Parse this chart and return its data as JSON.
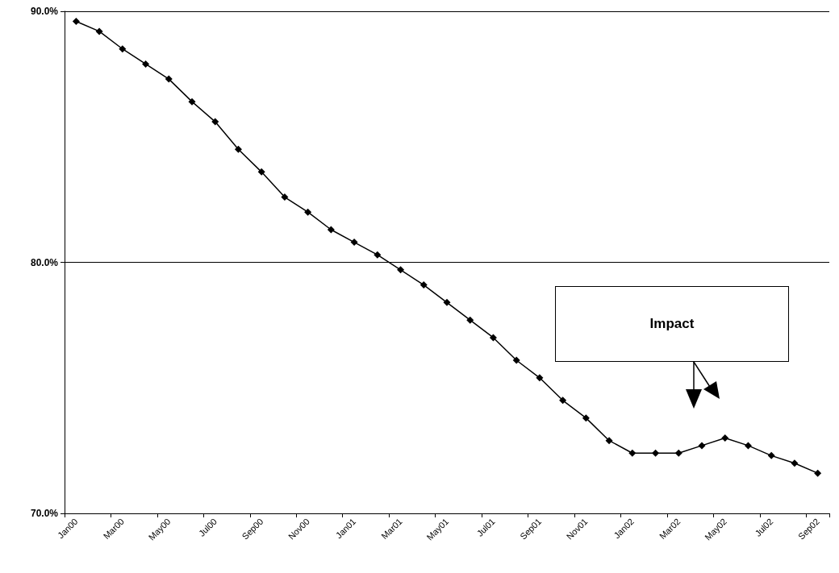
{
  "chart_data": {
    "type": "line",
    "categories": [
      "Jan00",
      null,
      "Mar00",
      null,
      "May00",
      null,
      "Jul00",
      null,
      "Sep00",
      null,
      "Nov00",
      null,
      "Jan01",
      null,
      "Mar01",
      null,
      "May01",
      null,
      "Jul01",
      null,
      "Sep01",
      null,
      "Nov01",
      null,
      "Jan02",
      null,
      "Mar02",
      null,
      "May02",
      null,
      "Jul02",
      null,
      "Sep02"
    ],
    "series": [
      {
        "color": "#000000",
        "values": [
          89.6,
          89.2,
          88.5,
          87.9,
          87.3,
          86.4,
          85.6,
          84.5,
          83.6,
          82.6,
          82.0,
          81.3,
          80.8,
          80.3,
          79.7,
          79.1,
          78.4,
          77.7,
          77.0,
          76.1,
          75.4,
          74.5,
          73.8,
          72.9,
          72.4,
          72.4,
          72.4,
          72.7,
          73.0,
          72.7,
          72.3,
          72.0,
          71.6
        ]
      }
    ],
    "ylim": [
      70,
      90
    ],
    "yticks": [
      {
        "value": 70,
        "label": "70.0%"
      },
      {
        "value": 80,
        "label": "80.0%"
      },
      {
        "value": 90,
        "label": "90.0%"
      }
    ],
    "grid": "y",
    "marker": "diamond",
    "annotations": [
      "Impact"
    ]
  }
}
